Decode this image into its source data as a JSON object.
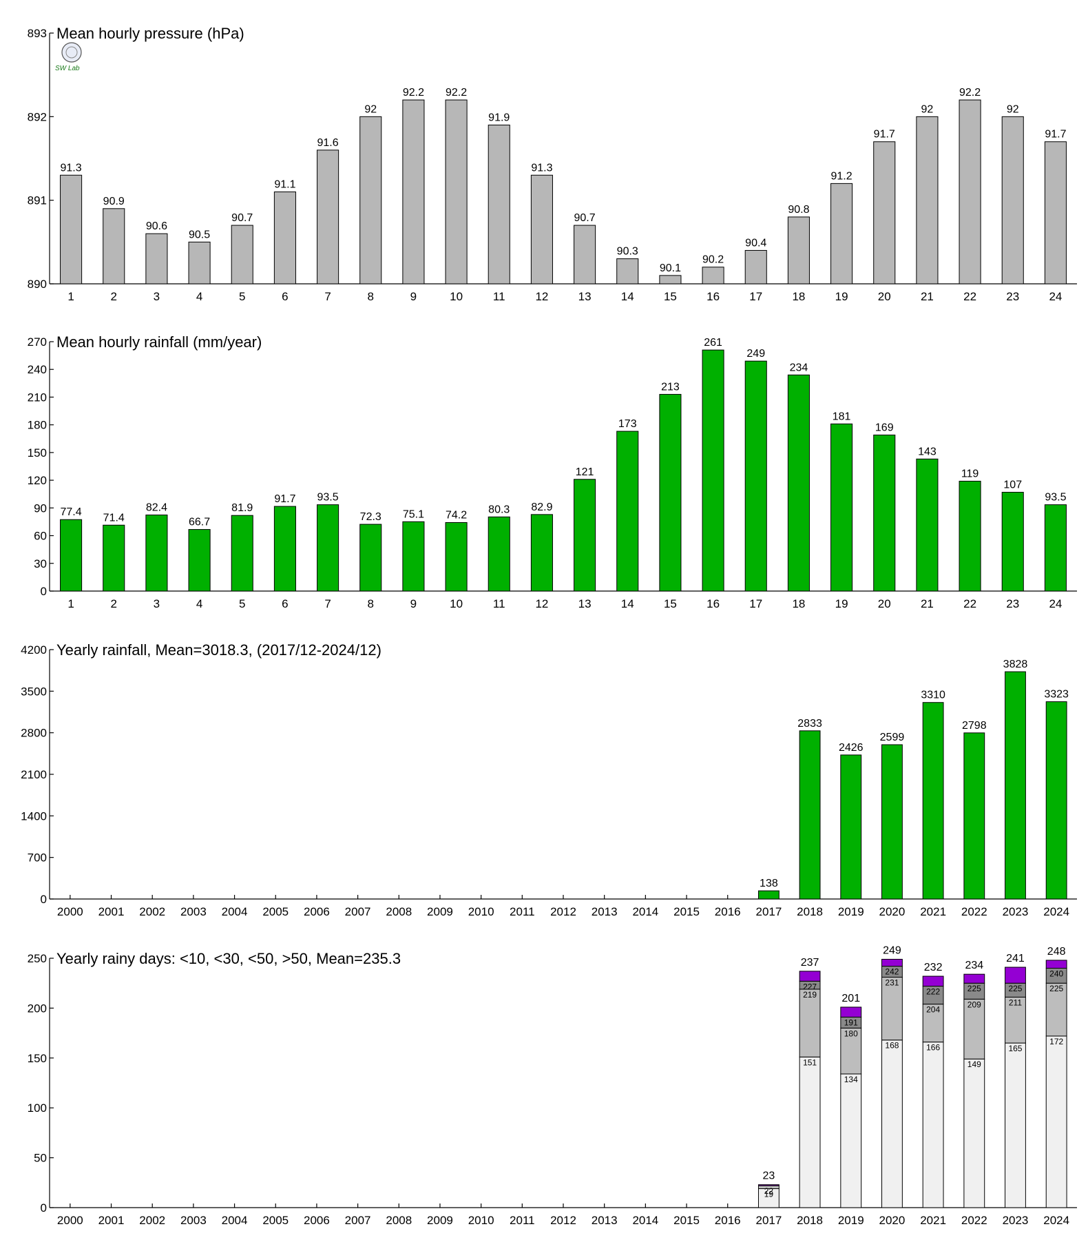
{
  "logo": {
    "text": "SW Lab",
    "icon": "weather-station-seal-logo"
  },
  "colors": {
    "pressure_bar": "#b7b7b7",
    "rain_bar": "#00b000",
    "days_lt10": "#f0f0f0",
    "days_lt30": "#bdbdbd",
    "days_lt50": "#8a8a8a",
    "days_gt50": "#9400d3",
    "bar_outline": "#000000"
  },
  "chart_data": [
    {
      "id": "pressure",
      "type": "bar",
      "title": "Mean hourly pressure (hPa)",
      "categories": [
        "1",
        "2",
        "3",
        "4",
        "5",
        "6",
        "7",
        "8",
        "9",
        "10",
        "11",
        "12",
        "13",
        "14",
        "15",
        "16",
        "17",
        "18",
        "19",
        "20",
        "21",
        "22",
        "23",
        "24"
      ],
      "values": [
        891.3,
        890.9,
        890.6,
        890.5,
        890.7,
        891.1,
        891.6,
        892.0,
        892.2,
        892.2,
        891.9,
        891.3,
        890.7,
        890.3,
        890.1,
        890.2,
        890.4,
        890.8,
        891.2,
        891.7,
        892.0,
        892.2,
        892.0,
        891.7
      ],
      "labels": [
        "91.3",
        "90.9",
        "90.6",
        "90.5",
        "90.7",
        "91.1",
        "91.6",
        "92",
        "92.2",
        "92.2",
        "91.9",
        "91.3",
        "90.7",
        "90.3",
        "90.1",
        "90.2",
        "90.4",
        "90.8",
        "91.2",
        "91.7",
        "92",
        "92.2",
        "92",
        "91.7"
      ],
      "ylim": [
        890,
        893
      ],
      "yticks": [
        "890",
        "891",
        "892",
        "893"
      ],
      "grid": false
    },
    {
      "id": "hourly_rain",
      "type": "bar",
      "title": "Mean hourly rainfall (mm/year)",
      "categories": [
        "1",
        "2",
        "3",
        "4",
        "5",
        "6",
        "7",
        "8",
        "9",
        "10",
        "11",
        "12",
        "13",
        "14",
        "15",
        "16",
        "17",
        "18",
        "19",
        "20",
        "21",
        "22",
        "23",
        "24"
      ],
      "values": [
        77.4,
        71.4,
        82.4,
        66.7,
        81.9,
        91.7,
        93.5,
        72.3,
        75.1,
        74.2,
        80.3,
        82.9,
        121,
        173,
        213,
        261,
        249,
        234,
        181,
        169,
        143,
        119,
        107,
        93.5
      ],
      "labels": [
        "77.4",
        "71.4",
        "82.4",
        "66.7",
        "81.9",
        "91.7",
        "93.5",
        "72.3",
        "75.1",
        "74.2",
        "80.3",
        "82.9",
        "121",
        "173",
        "213",
        "261",
        "249",
        "234",
        "181",
        "169",
        "143",
        "119",
        "107",
        "93.5"
      ],
      "ylim": [
        0,
        270
      ],
      "yticks": [
        "0",
        "30",
        "60",
        "90",
        "120",
        "150",
        "180",
        "210",
        "240",
        "270"
      ],
      "grid": false
    },
    {
      "id": "yearly_rain",
      "type": "bar",
      "title": "Yearly rainfall, Mean=3018.3, (2017/12-2024/12)",
      "categories": [
        "2000",
        "2001",
        "2002",
        "2003",
        "2004",
        "2005",
        "2006",
        "2007",
        "2008",
        "2009",
        "2010",
        "2011",
        "2012",
        "2013",
        "2014",
        "2015",
        "2016",
        "2017",
        "2018",
        "2019",
        "2020",
        "2021",
        "2022",
        "2023",
        "2024"
      ],
      "values": [
        null,
        null,
        null,
        null,
        null,
        null,
        null,
        null,
        null,
        null,
        null,
        null,
        null,
        null,
        null,
        null,
        null,
        138,
        2833,
        2426,
        2599,
        3310,
        2798,
        3828,
        3323
      ],
      "labels": [
        "",
        "",
        "",
        "",
        "",
        "",
        "",
        "",
        "",
        "",
        "",
        "",
        "",
        "",
        "",
        "",
        "",
        "138",
        "2833",
        "2426",
        "2599",
        "3310",
        "2798",
        "3828",
        "3323"
      ],
      "ylim": [
        0,
        4200
      ],
      "yticks": [
        "0",
        "700",
        "1400",
        "2100",
        "2800",
        "3500",
        "4200"
      ],
      "grid": false
    },
    {
      "id": "rainy_days",
      "type": "bar",
      "stacked": true,
      "title": "Yearly rainy days: <10, <30, <50, >50, Mean=235.3",
      "categories": [
        "2000",
        "2001",
        "2002",
        "2003",
        "2004",
        "2005",
        "2006",
        "2007",
        "2008",
        "2009",
        "2010",
        "2011",
        "2012",
        "2013",
        "2014",
        "2015",
        "2016",
        "2017",
        "2018",
        "2019",
        "2020",
        "2021",
        "2022",
        "2023",
        "2024"
      ],
      "series": [
        {
          "key": "lt10",
          "cumulative": [
            null,
            null,
            null,
            null,
            null,
            null,
            null,
            null,
            null,
            null,
            null,
            null,
            null,
            null,
            null,
            null,
            null,
            19,
            151,
            134,
            168,
            166,
            149,
            165,
            172
          ]
        },
        {
          "key": "lt30",
          "cumulative": [
            null,
            null,
            null,
            null,
            null,
            null,
            null,
            null,
            null,
            null,
            null,
            null,
            null,
            null,
            null,
            null,
            null,
            22,
            219,
            180,
            231,
            204,
            209,
            211,
            225
          ]
        },
        {
          "key": "lt50",
          "cumulative": [
            null,
            null,
            null,
            null,
            null,
            null,
            null,
            null,
            null,
            null,
            null,
            null,
            null,
            null,
            null,
            null,
            null,
            22,
            227,
            191,
            242,
            222,
            225,
            225,
            240
          ]
        },
        {
          "key": "gt50",
          "cumulative": [
            null,
            null,
            null,
            null,
            null,
            null,
            null,
            null,
            null,
            null,
            null,
            null,
            null,
            null,
            null,
            null,
            null,
            23,
            237,
            201,
            249,
            232,
            234,
            241,
            248
          ]
        }
      ],
      "totals": [
        "",
        "",
        "",
        "",
        "",
        "",
        "",
        "",
        "",
        "",
        "",
        "",
        "",
        "",
        "",
        "",
        "",
        "23",
        "237",
        "201",
        "249",
        "232",
        "234",
        "241",
        "248"
      ],
      "ylim": [
        0,
        250
      ],
      "yticks": [
        "0",
        "50",
        "100",
        "150",
        "200",
        "250"
      ],
      "grid": false
    }
  ]
}
